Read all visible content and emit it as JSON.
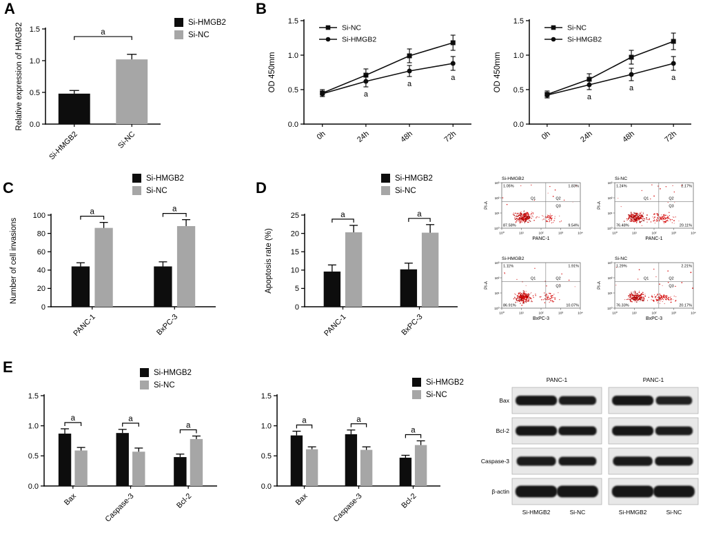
{
  "figure": {
    "panel_labels": {
      "a": "A",
      "b": "B",
      "c": "C",
      "d": "D",
      "e": "E"
    }
  },
  "colors": {
    "si_hmgb2_bar": "#0d0d0d",
    "si_nc_bar": "#a6a6a6",
    "flow_dot": "#d40000",
    "axis": "#000000"
  },
  "legend_labels": {
    "si_hmgb2": "Si-HMGB2",
    "si_nc": "Si-NC"
  },
  "chart_data": [
    {
      "id": "A",
      "type": "bar",
      "ylabel": "Relative expression of HMGB2",
      "ylim": [
        0,
        1.5
      ],
      "yticks": [
        0,
        0.5,
        1.0,
        1.5
      ],
      "ydecimals": 1,
      "categories": [
        "Si-HMGB2",
        "Si-NC"
      ],
      "values": [
        0.48,
        1.02
      ],
      "errors": [
        0.05,
        0.08
      ],
      "bar_colors": [
        "#0d0d0d",
        "#a6a6a6"
      ],
      "sig_bracket": {
        "from_cat": 0,
        "to_cat": 1,
        "label": "a",
        "y": 1.38
      },
      "legend_position": "top-right-outside"
    },
    {
      "id": "B1",
      "type": "line",
      "ylabel": "OD 450mm",
      "ylim": [
        0,
        1.5
      ],
      "yticks": [
        0,
        0.5,
        1.0,
        1.5
      ],
      "ydecimals": 1,
      "x": [
        "0h",
        "24h",
        "48h",
        "72h"
      ],
      "series": [
        {
          "name": "Si-NC",
          "marker": "square",
          "color": "#0d0d0d",
          "values": [
            0.45,
            0.71,
            0.99,
            1.18
          ],
          "errors": [
            0.05,
            0.09,
            0.1,
            0.11
          ]
        },
        {
          "name": "Si-HMGB2",
          "marker": "circle",
          "color": "#0d0d0d",
          "values": [
            0.44,
            0.62,
            0.77,
            0.88
          ],
          "errors": [
            0.04,
            0.08,
            0.08,
            0.1
          ],
          "point_labels": [
            "",
            "a",
            "a",
            "a"
          ]
        }
      ],
      "legend_position": "inside-top-left"
    },
    {
      "id": "B2",
      "type": "line",
      "ylabel": "OD 450mm",
      "ylim": [
        0,
        1.5
      ],
      "yticks": [
        0,
        0.5,
        1.0,
        1.5
      ],
      "ydecimals": 1,
      "x": [
        "0h",
        "24h",
        "48h",
        "72h"
      ],
      "series": [
        {
          "name": "Si-NC",
          "marker": "square",
          "color": "#0d0d0d",
          "values": [
            0.43,
            0.65,
            0.97,
            1.2
          ],
          "errors": [
            0.05,
            0.08,
            0.1,
            0.12
          ]
        },
        {
          "name": "Si-HMGB2",
          "marker": "circle",
          "color": "#0d0d0d",
          "values": [
            0.42,
            0.57,
            0.72,
            0.88
          ],
          "errors": [
            0.04,
            0.07,
            0.09,
            0.1
          ],
          "point_labels": [
            "",
            "a",
            "a",
            "a"
          ]
        }
      ],
      "legend_position": "inside-top-left"
    },
    {
      "id": "C",
      "type": "grouped_bar",
      "ylabel": "Number of cell invasions",
      "ylim": [
        0,
        100
      ],
      "yticks": [
        0,
        20,
        40,
        60,
        80,
        100
      ],
      "ydecimals": 0,
      "categories": [
        "PANC-1",
        "BxPC-3"
      ],
      "series": [
        {
          "name": "Si-HMGB2",
          "color": "#0d0d0d",
          "values": [
            44,
            44
          ],
          "errors": [
            4,
            5
          ]
        },
        {
          "name": "Si-NC",
          "color": "#a6a6a6",
          "values": [
            86,
            88
          ],
          "errors": [
            6,
            7
          ]
        }
      ],
      "sig": [
        {
          "cat": 0,
          "label": "a"
        },
        {
          "cat": 1,
          "label": "a"
        }
      ]
    },
    {
      "id": "D",
      "type": "grouped_bar",
      "ylabel": "Apoptosis rate (%)",
      "ylim": [
        0,
        25
      ],
      "yticks": [
        0,
        5,
        10,
        15,
        20,
        25
      ],
      "ydecimals": 0,
      "categories": [
        "PANC-1",
        "BxPC-3"
      ],
      "series": [
        {
          "name": "Si-HMGB2",
          "color": "#0d0d0d",
          "values": [
            9.6,
            10.2
          ],
          "errors": [
            1.8,
            1.7
          ]
        },
        {
          "name": "Si-NC",
          "color": "#a6a6a6",
          "values": [
            20.3,
            20.2
          ],
          "errors": [
            1.9,
            2.2
          ]
        }
      ],
      "sig": [
        {
          "cat": 0,
          "label": "a"
        },
        {
          "cat": 1,
          "label": "a"
        }
      ]
    },
    {
      "id": "E1",
      "type": "grouped_bar",
      "ylabel": "",
      "ylim": [
        0,
        1.5
      ],
      "yticks": [
        0,
        0.5,
        1.0,
        1.5
      ],
      "ydecimals": 1,
      "categories": [
        "Bax",
        "Caspase-3",
        "Bcl-2"
      ],
      "series": [
        {
          "name": "Si-HMGB2",
          "color": "#0d0d0d",
          "values": [
            0.87,
            0.88,
            0.48
          ],
          "errors": [
            0.08,
            0.06,
            0.05
          ]
        },
        {
          "name": "Si-NC",
          "color": "#a6a6a6",
          "values": [
            0.59,
            0.57,
            0.78
          ],
          "errors": [
            0.05,
            0.06,
            0.05
          ]
        }
      ],
      "sig": [
        {
          "cat": 0,
          "label": "a"
        },
        {
          "cat": 1,
          "label": "a"
        },
        {
          "cat": 2,
          "label": "a"
        }
      ]
    },
    {
      "id": "E2",
      "type": "grouped_bar",
      "ylabel": "",
      "ylim": [
        0,
        1.5
      ],
      "yticks": [
        0,
        0.5,
        1.0,
        1.5
      ],
      "ydecimals": 1,
      "categories": [
        "Bax",
        "Caspase-3",
        "Bcl-2"
      ],
      "series": [
        {
          "name": "Si-HMGB2",
          "color": "#0d0d0d",
          "values": [
            0.84,
            0.86,
            0.47
          ],
          "errors": [
            0.07,
            0.07,
            0.04
          ]
        },
        {
          "name": "Si-NC",
          "color": "#a6a6a6",
          "values": [
            0.61,
            0.6,
            0.68
          ],
          "errors": [
            0.04,
            0.05,
            0.07
          ]
        }
      ],
      "sig": [
        {
          "cat": 0,
          "label": "a"
        },
        {
          "cat": 1,
          "label": "a"
        },
        {
          "cat": 2,
          "label": "a"
        }
      ]
    }
  ],
  "flow_cytometry": {
    "ylabel": "PI-A",
    "xticks": [
      "10⁰",
      "10¹",
      "10²",
      "10³",
      "10⁴"
    ],
    "yticks": [
      "10⁰",
      "10¹",
      "10²",
      "10³"
    ],
    "plots": [
      {
        "title": "Si-HMGB2",
        "xlabel": "PANC-1",
        "q_labels": [
          "Q1",
          "Q2",
          "Q3"
        ],
        "pct_tl": "1.05%",
        "pct_tr": "1.83%",
        "pct_bl": "87.58%",
        "pct_br": "9.54%"
      },
      {
        "title": "Si-NC",
        "xlabel": "PANC-1",
        "q_labels": [
          "Q1",
          "Q2",
          "Q3"
        ],
        "pct_tl": "1.24%",
        "pct_tr": "2.17%",
        "pct_bl": "76.48%",
        "pct_br": "20.11%"
      },
      {
        "title": "Si-HMGB2",
        "xlabel": "BxPC-3",
        "q_labels": [
          "Q1",
          "Q2",
          "Q3"
        ],
        "pct_tl": "1.11%",
        "pct_tr": "1.91%",
        "pct_bl": "86.91%",
        "pct_br": "10.07%"
      },
      {
        "title": "Si-NC",
        "xlabel": "BxPC-3",
        "q_labels": [
          "Q1",
          "Q2",
          "Q3"
        ],
        "pct_tl": "1.29%",
        "pct_tr": "2.21%",
        "pct_bl": "76.33%",
        "pct_br": "20.17%"
      }
    ]
  },
  "western_blot": {
    "row_labels": [
      "Bax",
      "Bcl-2",
      "Caspase-3",
      "β-actin"
    ],
    "panels": [
      {
        "title": "PANC-1",
        "col_labels": [
          "Si-HMGB2",
          "Si-NC"
        ],
        "bands": [
          [
            1.0,
            0.78
          ],
          [
            1.0,
            0.82
          ],
          [
            0.88,
            0.8
          ],
          [
            1.02,
            1.0
          ]
        ]
      },
      {
        "title": "PANC-1",
        "col_labels": [
          "Si-HMGB2",
          "Si-NC"
        ],
        "bands": [
          [
            1.0,
            0.72
          ],
          [
            1.0,
            0.78
          ],
          [
            0.9,
            0.82
          ],
          [
            1.02,
            1.0
          ]
        ]
      }
    ]
  }
}
